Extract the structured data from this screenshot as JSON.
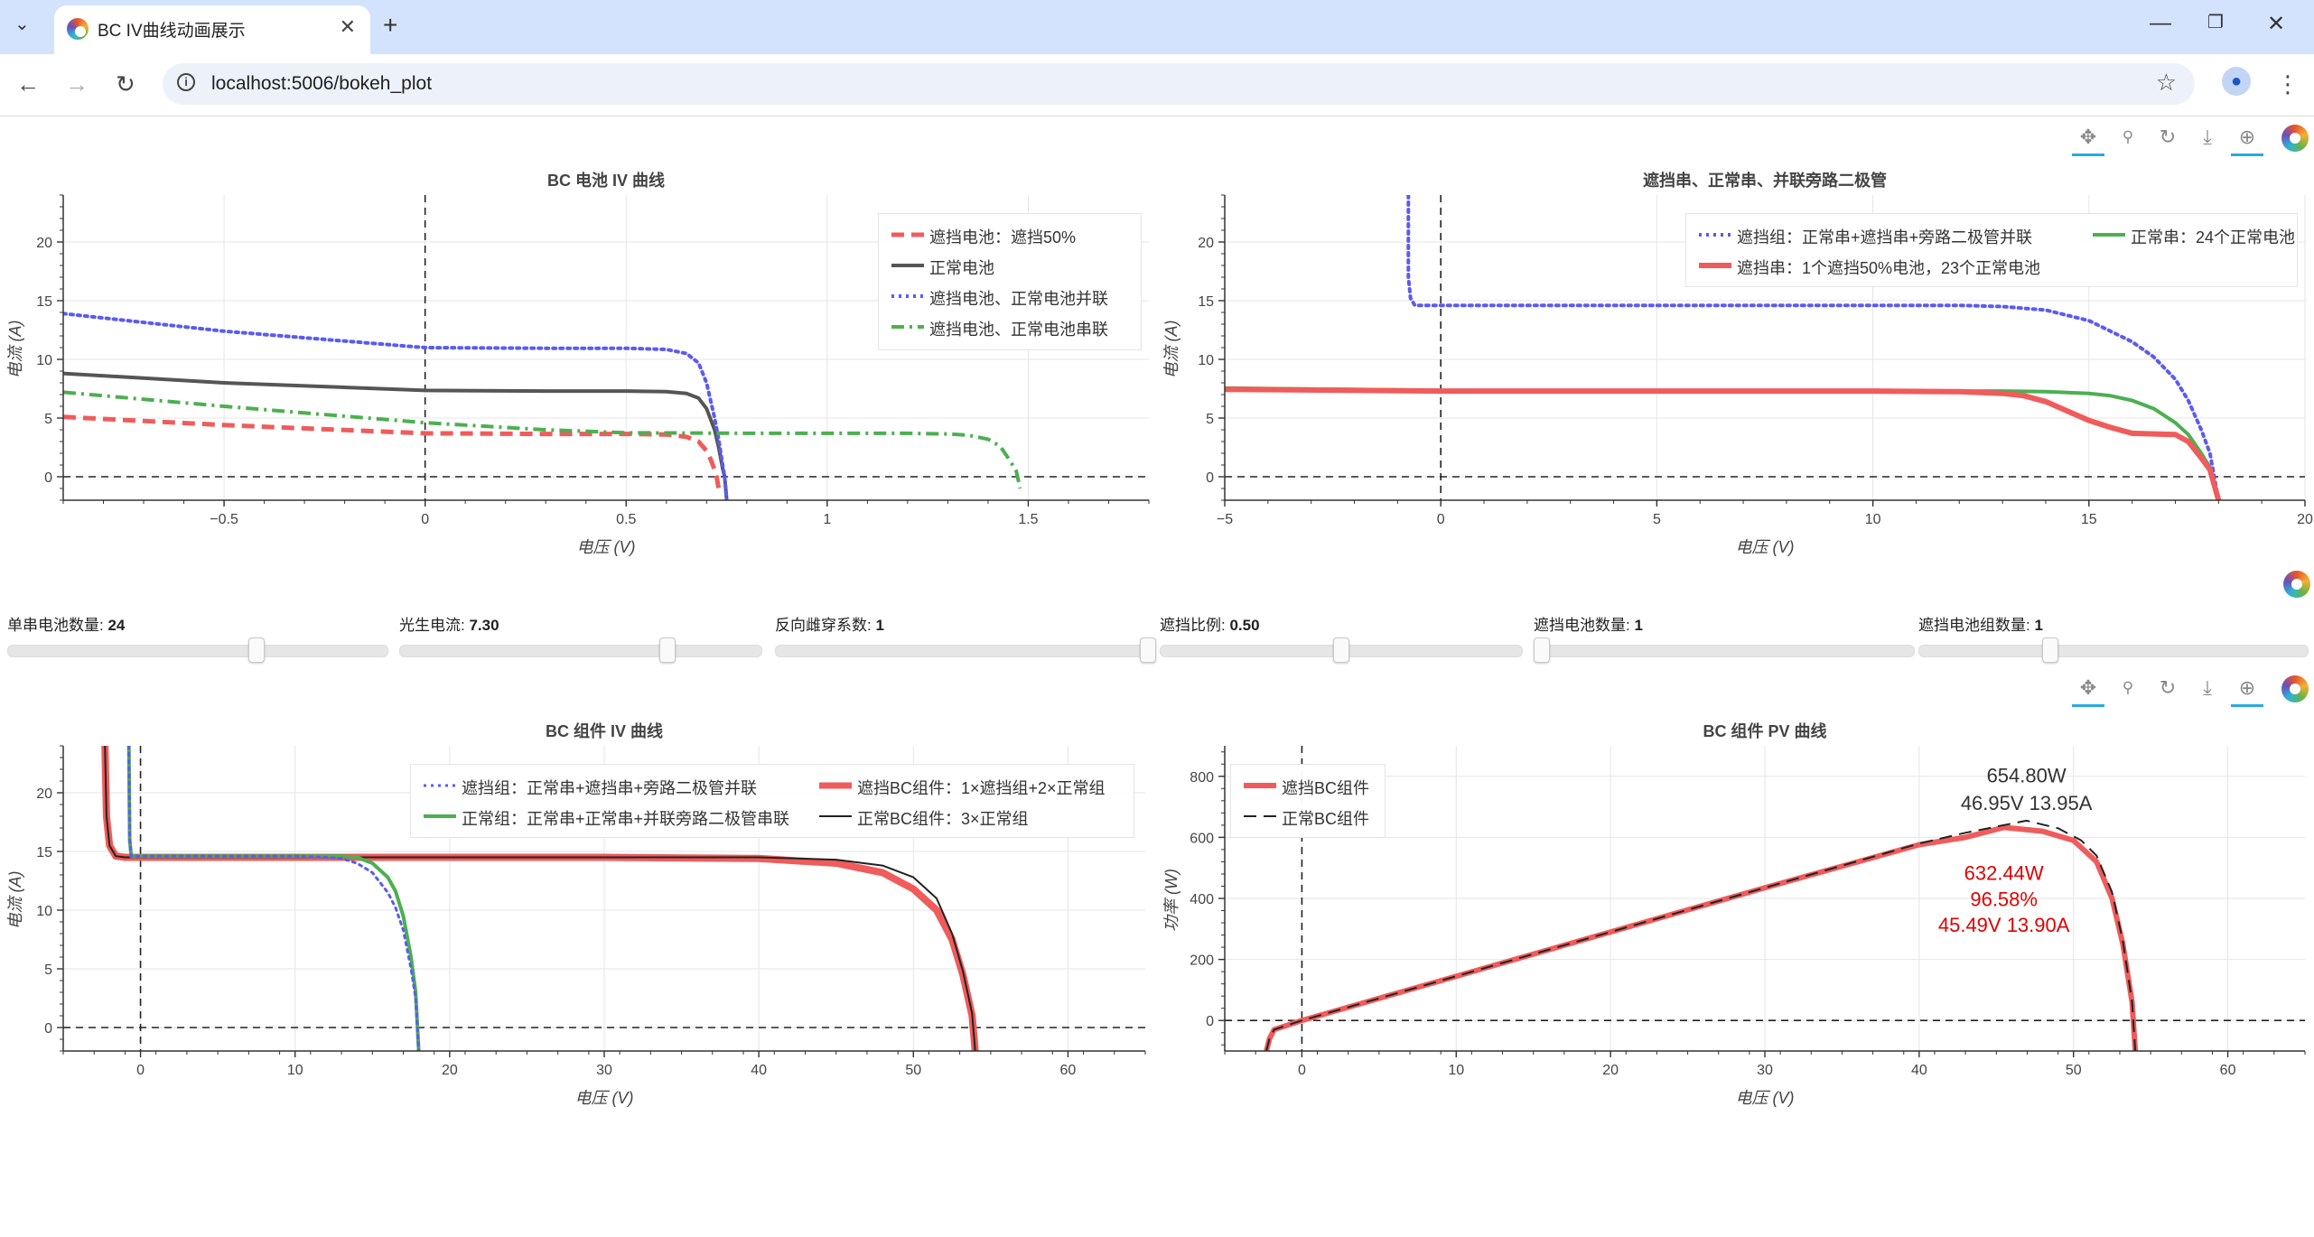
{
  "browser": {
    "tab_title": "BC IV曲线动画展示",
    "url": "localhost:5006/bokeh_plot",
    "new_tab": "+",
    "close": "✕"
  },
  "sliders": [
    {
      "label": "单串电池数量: ",
      "value": "24",
      "fraction": 0.66
    },
    {
      "label": "光生电流: ",
      "value": "7.30",
      "fraction": 0.75
    },
    {
      "label": "反向雌穿系数: ",
      "value": "1",
      "fraction": 1.0
    },
    {
      "label": "遮挡比例: ",
      "value": "0.50",
      "fraction": 0.5
    },
    {
      "label": "遮挡电池数量: ",
      "value": "1",
      "fraction": 0.0
    },
    {
      "label": "遮挡电池组数量: ",
      "value": "1",
      "fraction": 0.33
    }
  ],
  "colors": {
    "red": "#f05b5b",
    "gray": "#555555",
    "blue": "#5b5bf0",
    "green": "#4caf50",
    "black": "#222222"
  },
  "chart_data": [
    {
      "type": "line",
      "title": "BC 电池 IV 曲线",
      "xlabel": "电压 (V)",
      "ylabel": "电流 (A)",
      "xlim": [
        -0.9,
        1.8
      ],
      "ylim": [
        -2,
        24
      ],
      "xticks": [
        -0.5,
        0,
        0.5,
        1,
        1.5
      ],
      "xtick_labels": [
        "−0.5",
        "0",
        "0.5",
        "1",
        "1.5"
      ],
      "yticks": [
        0,
        5,
        10,
        15,
        20
      ],
      "legend_position": "top-right",
      "series": [
        {
          "name": "遮挡电池：遮挡50%",
          "color": "#f05b5b",
          "dash": "dash",
          "width": 5,
          "x": [
            -0.9,
            -0.5,
            0,
            0.3,
            0.5,
            0.6,
            0.65,
            0.68,
            0.7,
            0.71,
            0.72,
            0.725,
            0.73
          ],
          "y": [
            5.1,
            4.4,
            3.7,
            3.65,
            3.65,
            3.6,
            3.4,
            3.0,
            2.2,
            1.5,
            0.6,
            0,
            -1
          ]
        },
        {
          "name": "正常电池",
          "color": "#555555",
          "dash": "solid",
          "width": 4,
          "x": [
            -0.9,
            -0.5,
            0,
            0.3,
            0.5,
            0.6,
            0.65,
            0.68,
            0.7,
            0.72,
            0.73,
            0.74,
            0.745,
            0.75
          ],
          "y": [
            8.8,
            8.0,
            7.35,
            7.3,
            7.3,
            7.25,
            7.1,
            6.7,
            5.8,
            4.0,
            2.5,
            0.7,
            0,
            -2
          ]
        },
        {
          "name": "遮挡电池、正常电池并联",
          "color": "#5b5bf0",
          "dash": "dot",
          "width": 4,
          "x": [
            -0.9,
            -0.5,
            0,
            0.3,
            0.5,
            0.6,
            0.65,
            0.68,
            0.7,
            0.72,
            0.73,
            0.74,
            0.745,
            0.75
          ],
          "y": [
            13.9,
            12.4,
            11.0,
            10.95,
            10.95,
            10.85,
            10.5,
            9.7,
            8.0,
            5.0,
            3.2,
            1.0,
            0,
            -2
          ]
        },
        {
          "name": "遮挡电池、正常电池串联",
          "color": "#4caf50",
          "dash": "dashdot",
          "width": 4,
          "x": [
            -0.9,
            -0.5,
            0,
            0.3,
            0.5,
            0.8,
            1.0,
            1.2,
            1.3,
            1.35,
            1.4,
            1.43,
            1.45,
            1.47,
            1.48
          ],
          "y": [
            7.2,
            6.0,
            4.6,
            4.0,
            3.75,
            3.7,
            3.7,
            3.7,
            3.65,
            3.55,
            3.2,
            2.6,
            1.6,
            0.5,
            -1
          ]
        }
      ]
    },
    {
      "type": "line",
      "title": "遮挡串、正常串、并联旁路二极管",
      "xlabel": "电压 (V)",
      "ylabel": "电流 (A)",
      "xlim": [
        -5,
        20
      ],
      "ylim": [
        -2,
        24
      ],
      "xticks": [
        -5,
        0,
        5,
        10,
        15,
        20
      ],
      "xtick_labels": [
        "−5",
        "0",
        "5",
        "10",
        "15",
        "20"
      ],
      "yticks": [
        0,
        5,
        10,
        15,
        20
      ],
      "legend_position": "top-right",
      "series": [
        {
          "name": "遮挡组：正常串+遮挡串+旁路二极管并联",
          "color": "#5b5bf0",
          "dash": "dot",
          "width": 4,
          "x": [
            -0.75,
            -0.75,
            -0.7,
            -0.6,
            0,
            5,
            10,
            12,
            13,
            14,
            15,
            16,
            16.5,
            17,
            17.3,
            17.6,
            17.8,
            18
          ],
          "y": [
            24,
            17,
            15.2,
            14.6,
            14.6,
            14.6,
            14.6,
            14.6,
            14.5,
            14.2,
            13.3,
            11.5,
            10.2,
            8.3,
            6.5,
            4.0,
            2.0,
            -2
          ]
        },
        {
          "name": "正常串：24个正常电池",
          "color": "#4caf50",
          "dash": "solid",
          "width": 4,
          "x": [
            -5,
            0,
            5,
            10,
            13,
            14,
            15,
            15.5,
            16,
            16.5,
            17,
            17.3,
            17.6,
            17.8,
            18
          ],
          "y": [
            7.55,
            7.35,
            7.3,
            7.3,
            7.3,
            7.25,
            7.1,
            6.9,
            6.5,
            5.8,
            4.6,
            3.6,
            2.0,
            0.8,
            -2
          ]
        },
        {
          "name": "遮挡串：1个遮挡50%电池，23个正常电池",
          "color": "#f05b5b",
          "dash": "solid",
          "width": 6,
          "x": [
            -5,
            0,
            5,
            10,
            12,
            13,
            13.5,
            14,
            14.5,
            15,
            15.5,
            16,
            16.5,
            17,
            17.3,
            17.6,
            17.8,
            18
          ],
          "y": [
            7.45,
            7.3,
            7.3,
            7.3,
            7.25,
            7.1,
            6.9,
            6.4,
            5.6,
            4.8,
            4.2,
            3.7,
            3.65,
            3.6,
            3.0,
            1.6,
            0.6,
            -2
          ]
        }
      ]
    },
    {
      "type": "line",
      "title": "BC 组件 IV 曲线",
      "xlabel": "电压 (V)",
      "ylabel": "电流 (A)",
      "xlim": [
        -5,
        65
      ],
      "ylim": [
        -2,
        24
      ],
      "xticks": [
        0,
        10,
        20,
        30,
        40,
        50,
        60
      ],
      "xtick_labels": [
        "0",
        "10",
        "20",
        "30",
        "40",
        "50",
        "60"
      ],
      "yticks": [
        0,
        5,
        10,
        15,
        20
      ],
      "legend_position": "top-right",
      "series": [
        {
          "name": "遮挡BC组件：1×遮挡组+2×正常组",
          "color": "#f05b5b",
          "dash": "solid",
          "width": 8,
          "x": [
            -2.3,
            -2.2,
            -2.0,
            -1.6,
            -1,
            10,
            30,
            40,
            45,
            48,
            50,
            51.5,
            52.5,
            53.2,
            53.8,
            54
          ],
          "y": [
            24,
            18,
            15.5,
            14.6,
            14.5,
            14.5,
            14.5,
            14.4,
            14.0,
            13.2,
            11.8,
            10.0,
            7.5,
            4.5,
            1.0,
            -2
          ]
        },
        {
          "name": "正常BC组件：3×正常组",
          "color": "#222222",
          "dash": "solid",
          "width": 2,
          "x": [
            -2.3,
            -2.2,
            -2.0,
            -1.6,
            -1,
            10,
            30,
            40,
            45,
            48,
            50,
            51.5,
            52.5,
            53.2,
            53.8,
            54
          ],
          "y": [
            24,
            18,
            15.5,
            14.6,
            14.5,
            14.5,
            14.5,
            14.5,
            14.3,
            13.8,
            12.8,
            11.0,
            8.0,
            4.8,
            1.2,
            -2
          ]
        },
        {
          "name": "正常组：正常串+正常串+并联旁路二极管串联",
          "color": "#4caf50",
          "dash": "solid",
          "width": 4,
          "x": [
            -0.75,
            -0.7,
            -0.6,
            0,
            5,
            10,
            13,
            14,
            15,
            16,
            16.5,
            17,
            17.5,
            17.8,
            18
          ],
          "y": [
            24,
            16,
            14.6,
            14.6,
            14.6,
            14.6,
            14.6,
            14.5,
            14.0,
            12.8,
            11.6,
            9.5,
            6.0,
            3.0,
            -2
          ]
        },
        {
          "name": "遮挡组：正常串+遮挡串+旁路二极管并联",
          "color": "#5b5bf0",
          "dash": "dot",
          "width": 3,
          "x": [
            -0.75,
            -0.7,
            -0.6,
            0,
            5,
            10,
            12,
            13,
            14,
            15,
            16,
            16.5,
            17,
            17.5,
            17.8,
            18
          ],
          "y": [
            24,
            16,
            14.6,
            14.6,
            14.6,
            14.6,
            14.5,
            14.4,
            14.0,
            13.2,
            11.5,
            10.2,
            8.3,
            5.0,
            2.5,
            -2
          ]
        }
      ]
    },
    {
      "type": "line",
      "title": "BC 组件 PV 曲线",
      "xlabel": "电压 (V)",
      "ylabel": "功率 (W)",
      "xlim": [
        -5,
        65
      ],
      "ylim": [
        -100,
        900
      ],
      "xticks": [
        0,
        10,
        20,
        30,
        40,
        50,
        60
      ],
      "xtick_labels": [
        "0",
        "10",
        "20",
        "30",
        "40",
        "50",
        "60"
      ],
      "yticks": [
        0,
        200,
        400,
        600,
        800
      ],
      "legend_position": "top-left",
      "series": [
        {
          "name": "遮挡BC组件",
          "color": "#f05b5b",
          "dash": "solid",
          "width": 6,
          "x": [
            -2.3,
            -2.1,
            -1.8,
            0,
            10,
            20,
            30,
            40,
            43,
            45.49,
            48,
            50,
            51.5,
            52.5,
            53.2,
            53.8,
            54
          ],
          "y": [
            -100,
            -60,
            -30,
            0,
            145,
            290,
            435,
            576,
            600,
            632.44,
            620,
            590,
            520,
            400,
            250,
            60,
            -100
          ]
        },
        {
          "name": "正常BC组件",
          "color": "#222222",
          "dash": "dash",
          "width": 2,
          "x": [
            -2.3,
            -2.1,
            -1.8,
            0,
            10,
            20,
            30,
            40,
            43,
            46.95,
            49,
            50.5,
            51.5,
            52.5,
            53.2,
            53.8,
            54
          ],
          "y": [
            -100,
            -60,
            -30,
            0,
            145,
            290,
            435,
            580,
            615,
            654.8,
            630,
            590,
            540,
            420,
            260,
            60,
            -100
          ]
        }
      ],
      "annotations": [
        {
          "text": "654.80W",
          "x": 46.95,
          "y": 780,
          "color": "#333333"
        },
        {
          "text": "46.95V 13.95A",
          "x": 46.95,
          "y": 690,
          "color": "#333333"
        },
        {
          "text": "632.44W",
          "x": 45.49,
          "y": 460,
          "color": "#e00000"
        },
        {
          "text": "96.58%",
          "x": 45.49,
          "y": 375,
          "color": "#e00000"
        },
        {
          "text": "45.49V 13.90A",
          "x": 45.49,
          "y": 290,
          "color": "#e00000"
        }
      ]
    }
  ]
}
